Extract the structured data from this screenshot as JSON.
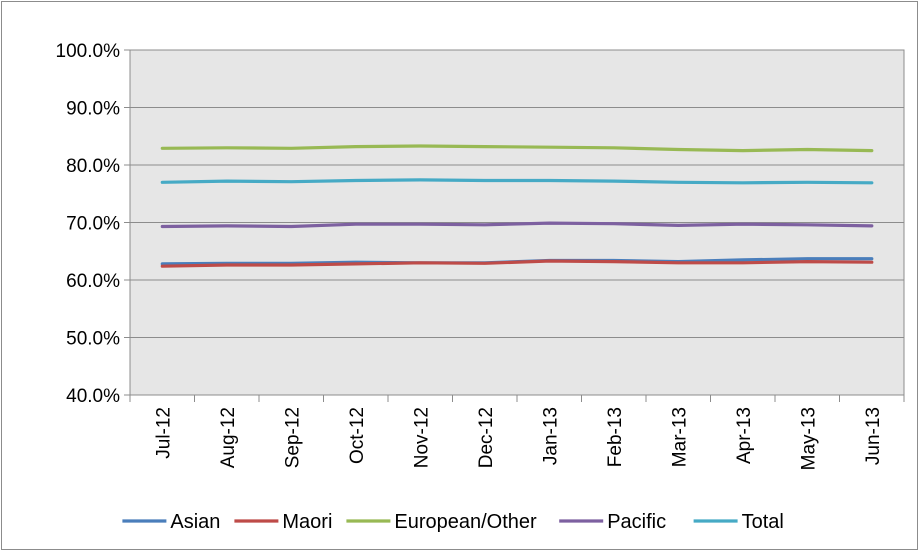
{
  "chart_data": {
    "type": "line",
    "title": "",
    "xlabel": "",
    "ylabel": "",
    "categories": [
      "Jul-12",
      "Aug-12",
      "Sep-12",
      "Oct-12",
      "Nov-12",
      "Dec-12",
      "Jan-13",
      "Feb-13",
      "Mar-13",
      "Apr-13",
      "May-13",
      "Jun-13"
    ],
    "y_ticks": [
      "40.0%",
      "50.0%",
      "60.0%",
      "70.0%",
      "80.0%",
      "90.0%",
      "100.0%"
    ],
    "ylim": [
      40,
      100
    ],
    "grid": true,
    "legend_position": "bottom",
    "series": [
      {
        "name": "Asian",
        "color": "#4a7ebb",
        "values": [
          62.8,
          62.9,
          62.9,
          63.1,
          63.0,
          63.0,
          63.4,
          63.4,
          63.2,
          63.5,
          63.7,
          63.7
        ]
      },
      {
        "name": "Maori",
        "color": "#be4b48",
        "values": [
          62.4,
          62.6,
          62.6,
          62.8,
          63.0,
          62.9,
          63.3,
          63.2,
          63.0,
          63.0,
          63.2,
          63.1
        ]
      },
      {
        "name": "European/Other",
        "color": "#98b954",
        "values": [
          82.9,
          83.0,
          82.9,
          83.2,
          83.3,
          83.2,
          83.1,
          83.0,
          82.7,
          82.5,
          82.7,
          82.5
        ]
      },
      {
        "name": "Pacific",
        "color": "#7d60a0",
        "values": [
          69.3,
          69.4,
          69.3,
          69.7,
          69.7,
          69.6,
          69.9,
          69.8,
          69.5,
          69.7,
          69.6,
          69.4
        ]
      },
      {
        "name": "Total",
        "color": "#46aac5",
        "values": [
          77.0,
          77.2,
          77.1,
          77.3,
          77.4,
          77.3,
          77.3,
          77.2,
          77.0,
          76.9,
          77.0,
          76.9
        ]
      }
    ]
  }
}
